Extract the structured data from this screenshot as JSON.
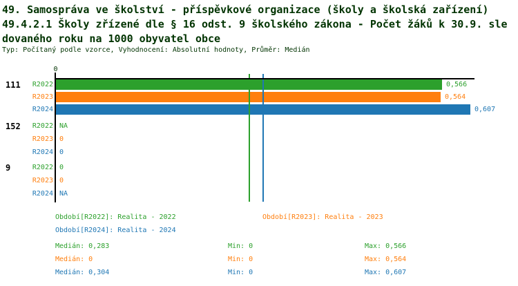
{
  "colors": {
    "background": "#ffffff",
    "title_text": "#003300",
    "axis": "#000000",
    "series_r2022": "#2ca02c",
    "series_r2023": "#ff7f0e",
    "series_r2024": "#1f77b4"
  },
  "header": {
    "title_lines": [
      "49. Samospráva ve školství - příspěvkové organizace (školy a školská zařízení)",
      "49.4.2.1 Školy zřízené dle § 16 odst. 9 školského zákona - Počet žáků k 30.9. sle",
      "dovaného roku na 1000 obyvatel obce"
    ],
    "subtitle": "Typ: Počítaný podle vzorce, Vyhodnocení: Absolutní hodnoty, Průměr: Medián"
  },
  "chart_data": {
    "type": "bar",
    "orientation": "horizontal",
    "title": "49.4.2.1 Školy zřízené dle § 16 odst. 9 školského zákona - Počet žáků k 30.9. sledovaného roku na 1000 obyvatel obce",
    "x_axis": {
      "min": 0,
      "origin_tick_label": "0",
      "gridlines": false
    },
    "categories": [
      "111",
      "152",
      "9"
    ],
    "series": [
      {
        "name": "R2022",
        "color": "#2ca02c",
        "values": [
          0.566,
          null,
          0
        ],
        "value_labels": [
          "0,566",
          "NA",
          "0"
        ],
        "median": 0.283,
        "min": 0,
        "max": 0.566,
        "legend_label": "Období[R2022]: Realita - 2022",
        "median_label": "Medián: 0,283",
        "min_label": "Min: 0",
        "max_label": "Max: 0,566"
      },
      {
        "name": "R2023",
        "color": "#ff7f0e",
        "values": [
          0.564,
          0,
          0
        ],
        "value_labels": [
          "0,564",
          "0",
          "0"
        ],
        "median": 0,
        "min": 0,
        "max": 0.564,
        "legend_label": "Období[R2023]: Realita - 2023",
        "median_label": "Medián: 0",
        "min_label": "Min: 0",
        "max_label": "Max: 0,564"
      },
      {
        "name": "R2024",
        "color": "#1f77b4",
        "values": [
          0.607,
          0,
          null
        ],
        "value_labels": [
          "0,607",
          "0",
          "NA"
        ],
        "median": 0.304,
        "min": 0,
        "max": 0.607,
        "legend_label": "Období[R2024]: Realita - 2024",
        "median_label": "Medián: 0,304",
        "min_label": "Min: 0",
        "max_label": "Max: 0,607"
      }
    ],
    "legend_position": "below",
    "median_lines_shown": true
  }
}
